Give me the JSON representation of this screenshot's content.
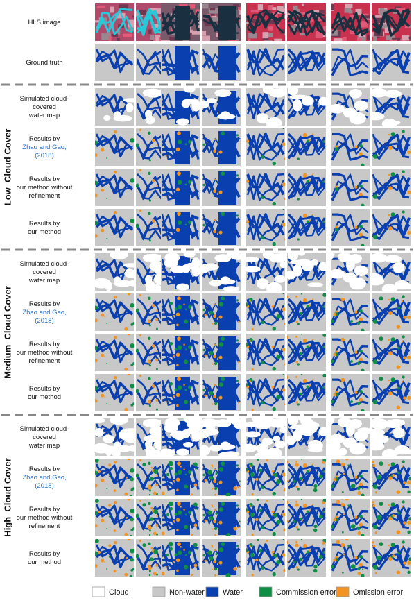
{
  "top_rows": [
    [
      "HLS image"
    ],
    [
      "Ground truth"
    ]
  ],
  "sections": [
    {
      "title": "Low  Cloud Cover",
      "rows": [
        {
          "lines": [
            "Simulated cloud-",
            "covered",
            "water map"
          ],
          "citation": []
        },
        {
          "lines": [
            "Results by"
          ],
          "citation": [
            "Zhao and Gao,",
            "(2018)"
          ]
        },
        {
          "lines": [
            "Results by",
            "our method without",
            "refinement"
          ],
          "citation": []
        },
        {
          "lines": [
            "Results by",
            "our method"
          ],
          "citation": []
        }
      ]
    },
    {
      "title": "Medium  Cloud Cover",
      "rows": [
        {
          "lines": [
            "Simulated cloud-",
            "covered",
            "water map"
          ],
          "citation": []
        },
        {
          "lines": [
            "Results by"
          ],
          "citation": [
            "Zhao and Gao,",
            "(2018)"
          ]
        },
        {
          "lines": [
            "Results by",
            "our method without",
            "refinement"
          ],
          "citation": []
        },
        {
          "lines": [
            "Results by",
            "our method"
          ],
          "citation": []
        }
      ]
    },
    {
      "title": "High  Cloud Cover",
      "rows": [
        {
          "lines": [
            "Simulated cloud-",
            "covered",
            "water map"
          ],
          "citation": []
        },
        {
          "lines": [
            "Results by"
          ],
          "citation": [
            "Zhao and Gao,",
            "(2018)"
          ]
        },
        {
          "lines": [
            "Results by",
            "our method without",
            "refinement"
          ],
          "citation": []
        },
        {
          "lines": [
            "Results by",
            "our method"
          ],
          "citation": []
        }
      ]
    }
  ],
  "legend": [
    {
      "label": "Cloud",
      "color": "#ffffff"
    },
    {
      "label": "Non-water",
      "color": "#c8c8c8"
    },
    {
      "label": "Water",
      "color": "#0a3fb0"
    },
    {
      "label": "Commission error",
      "color": "#0e8f45"
    },
    {
      "label": "Omission error",
      "color": "#f39321"
    }
  ]
}
